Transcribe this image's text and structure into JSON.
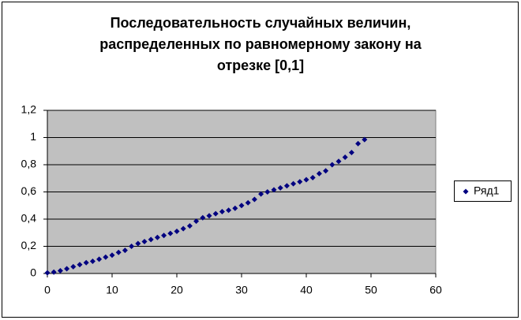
{
  "chart_data": {
    "type": "scatter",
    "title": [
      "Последовательность случайных величин,",
      "распределенных по равномерному закону на",
      "отрезке [0,1]"
    ],
    "x": [
      0,
      1,
      2,
      3,
      4,
      5,
      6,
      7,
      8,
      9,
      10,
      11,
      12,
      13,
      14,
      15,
      16,
      17,
      18,
      19,
      20,
      21,
      22,
      23,
      24,
      25,
      26,
      27,
      28,
      29,
      30,
      31,
      32,
      33,
      34,
      35,
      36,
      37,
      38,
      39,
      40,
      41,
      42,
      43,
      44,
      45,
      46,
      47,
      48,
      49
    ],
    "series": [
      {
        "name": "Ряд1",
        "color": "#000080",
        "values": [
          0.005,
          0.01,
          0.02,
          0.035,
          0.05,
          0.065,
          0.08,
          0.09,
          0.105,
          0.12,
          0.135,
          0.155,
          0.17,
          0.2,
          0.22,
          0.235,
          0.25,
          0.265,
          0.28,
          0.295,
          0.31,
          0.33,
          0.35,
          0.385,
          0.41,
          0.425,
          0.44,
          0.455,
          0.465,
          0.48,
          0.5,
          0.52,
          0.545,
          0.585,
          0.6,
          0.615,
          0.63,
          0.645,
          0.66,
          0.675,
          0.69,
          0.705,
          0.735,
          0.755,
          0.8,
          0.825,
          0.855,
          0.89,
          0.955,
          0.985
        ]
      }
    ],
    "xlim": [
      0,
      60
    ],
    "xticks": [
      0,
      10,
      20,
      30,
      40,
      50,
      60
    ],
    "ylim": [
      0,
      1.2
    ],
    "yticks": [
      0,
      {
        "value": 0.2,
        "label": "0,2"
      },
      {
        "value": 0.4,
        "label": "0,4"
      },
      {
        "value": 0.6,
        "label": "0,6"
      },
      {
        "value": 0.8,
        "label": "0,8"
      },
      1,
      {
        "value": 1.2,
        "label": "1,2"
      }
    ],
    "grid": true,
    "plot_background": "#c0c0c0",
    "legend": "right"
  }
}
